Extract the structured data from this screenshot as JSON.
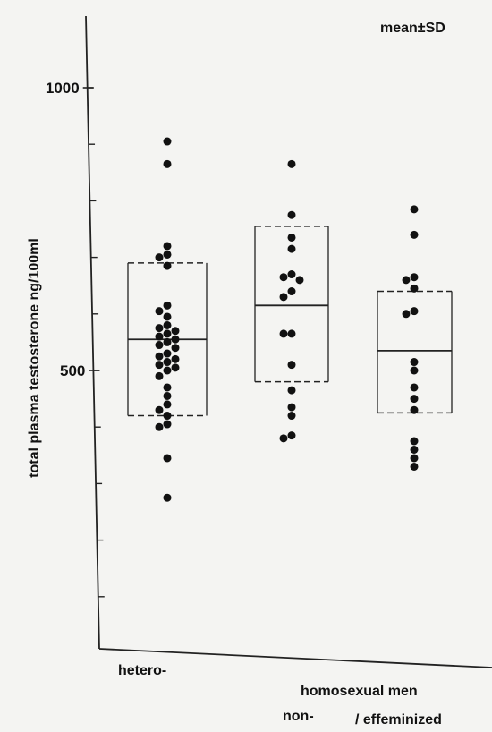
{
  "chart_data": {
    "type": "scatter",
    "subtype": "dot-strip-with-mean-sd-boxes",
    "annotation": "mean±SD",
    "ylabel": "total plasma testosterone ng/100ml",
    "y_ticks": [
      {
        "value": 1000,
        "label": "1000"
      },
      {
        "value": 500,
        "label": "500"
      }
    ],
    "ylim": [
      0,
      1100
    ],
    "x_labels": [
      "hetero-",
      "homosexual men",
      "non-",
      "/ effeminized"
    ],
    "groups": [
      {
        "mean": 555,
        "sd_low": 420,
        "sd_high": 690,
        "points": [
          905,
          865,
          720,
          705,
          700,
          685,
          615,
          605,
          595,
          580,
          575,
          570,
          565,
          560,
          555,
          550,
          545,
          540,
          530,
          525,
          520,
          515,
          510,
          505,
          500,
          490,
          470,
          455,
          440,
          430,
          420,
          405,
          400,
          345,
          275
        ]
      },
      {
        "mean": 615,
        "sd_low": 480,
        "sd_high": 755,
        "points": [
          865,
          775,
          735,
          715,
          670,
          665,
          660,
          640,
          630,
          565,
          565,
          510,
          465,
          435,
          420,
          385,
          380
        ]
      },
      {
        "mean": 535,
        "sd_low": 425,
        "sd_high": 640,
        "points": [
          785,
          740,
          665,
          660,
          645,
          605,
          600,
          515,
          500,
          470,
          450,
          430,
          375,
          360,
          345,
          330
        ]
      }
    ]
  }
}
